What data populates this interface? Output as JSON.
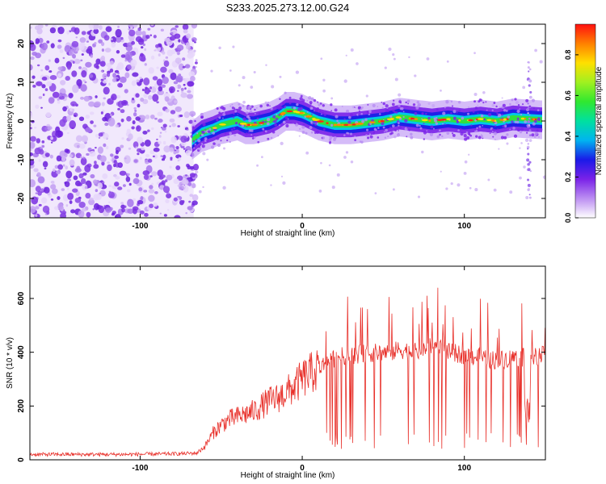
{
  "title": "S233.2025.273.12.00.G24",
  "chart_data": [
    {
      "type": "heatmap",
      "xlabel": "Height of straight line (km)",
      "ylabel": "Frequency (Hz)",
      "xlim": [
        -168,
        150
      ],
      "ylim": [
        -25,
        25
      ],
      "xticks": [
        -100,
        0,
        100
      ],
      "yticks": [
        -20,
        -10,
        0,
        10,
        20
      ],
      "noise_region_x": [
        -168,
        -67
      ],
      "ridge": {
        "x": [
          -68,
          -62,
          -55,
          -50,
          -45,
          -40,
          -35,
          -30,
          -25,
          -20,
          -15,
          -10,
          -5,
          0,
          5,
          10,
          20,
          30,
          40,
          50,
          60,
          70,
          80,
          90,
          100,
          110,
          120,
          130,
          140,
          148
        ],
        "freq": [
          -5,
          -3,
          -2,
          -1,
          -0.5,
          0,
          -1,
          -1,
          -0.5,
          0,
          1,
          2.5,
          2.5,
          2,
          1,
          0,
          -1,
          -1,
          -0.5,
          0,
          1,
          0.5,
          0,
          0.5,
          0,
          0.5,
          0,
          0.8,
          0.5,
          0.3
        ]
      },
      "colorbar": {
        "label": "Normalized spectral amplitude",
        "range": [
          0,
          0.95
        ],
        "ticks": [
          "0.0",
          "0.2",
          "0.4",
          "0.6",
          "0.8"
        ]
      }
    },
    {
      "type": "line",
      "xlabel": "Height of straight line (km)",
      "ylabel": "SNR (10 * v/v)",
      "xlim": [
        -168,
        150
      ],
      "ylim": [
        0,
        720
      ],
      "xticks": [
        -100,
        0,
        100
      ],
      "yticks": [
        0,
        200,
        400,
        600
      ],
      "series": [
        {
          "name": "SNR",
          "color": "#e8302a",
          "x": [
            -168,
            -140,
            -110,
            -80,
            -65,
            -60,
            -55,
            -50,
            -45,
            -40,
            -35,
            -30,
            -25,
            -20,
            -15,
            -10,
            -5,
            0,
            5,
            10,
            15,
            20,
            30,
            40,
            50,
            55,
            60,
            70,
            80,
            85,
            90,
            100,
            110,
            120,
            130,
            137,
            140,
            150
          ],
          "y": [
            20,
            20,
            20,
            22,
            25,
            50,
            100,
            130,
            150,
            160,
            170,
            180,
            200,
            220,
            230,
            250,
            270,
            300,
            320,
            340,
            360,
            380,
            390,
            395,
            400,
            400,
            410,
            400,
            420,
            430,
            400,
            390,
            380,
            370,
            380,
            380,
            380,
            390
          ]
        }
      ]
    }
  ]
}
